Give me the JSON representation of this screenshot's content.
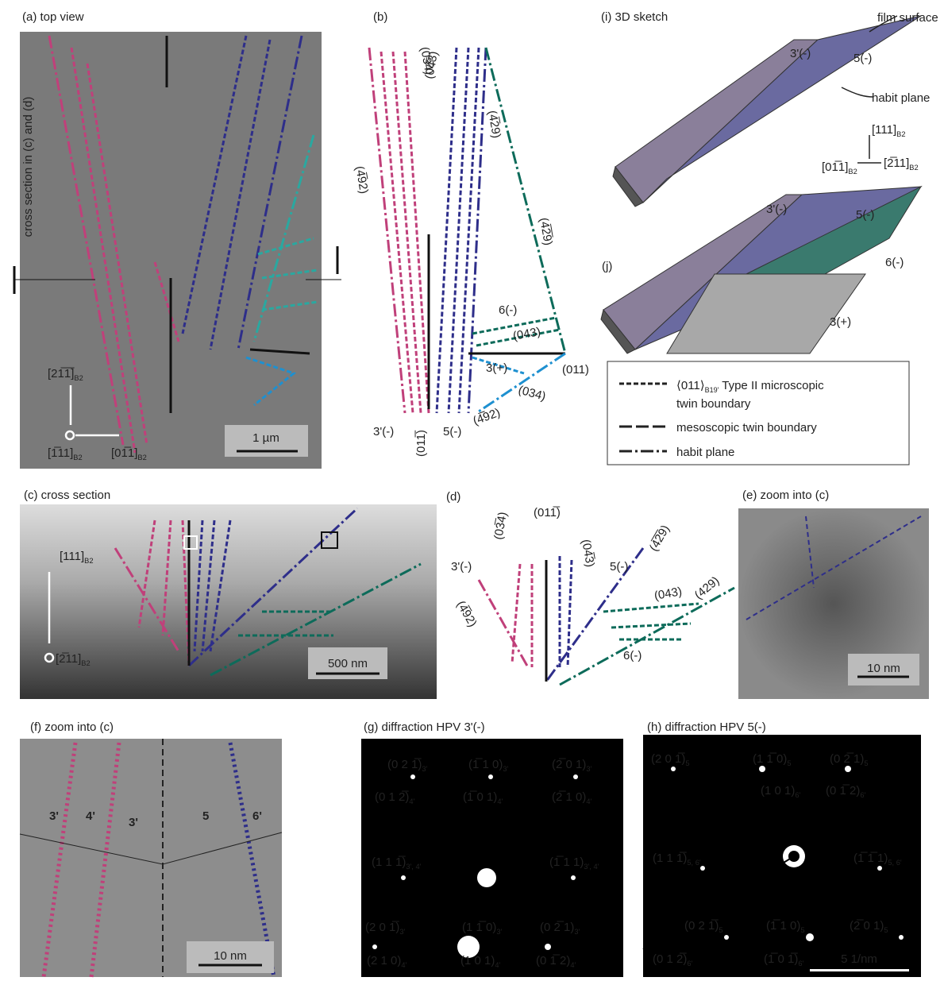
{
  "panel_a": {
    "title": "(a) top view",
    "section_label": "cross section in (c) and (d)",
    "dir_up": {
      "main": "[21̅1̅]",
      "sub": "B2"
    },
    "dir_out": {
      "main": "[1̅11]",
      "sub": "B2"
    },
    "dir_right": {
      "main": "[01̅1]",
      "sub": "B2"
    },
    "scale": "1 µm"
  },
  "panel_b": {
    "title": "(b)",
    "labels": [
      "(4̅92)",
      "(03̅4)",
      "(04̅3)",
      "(4̅29)",
      "(4̅2̅9)",
      "6(-)",
      "(043)",
      "3(+)",
      "(011)",
      "(034)",
      "(4̅92)",
      "3'(-)",
      "(011̅)",
      "5(-)"
    ]
  },
  "panel_i": {
    "title": "(i) 3D sketch",
    "film_surface": "film surface",
    "habit_plane": "habit plane",
    "top_label_1": "3'(-)",
    "top_label_2": "5(-)",
    "dir_up": {
      "main": "[111]",
      "sub": "B2"
    },
    "dir_left": {
      "main": "[01̅1]",
      "sub": "B2"
    },
    "dir_right": {
      "main": "[2̅11]",
      "sub": "B2"
    },
    "j_title": "(j)",
    "j_labels": [
      "3'(-)",
      "5(-)",
      "6(-)",
      "3(+)"
    ]
  },
  "legend": {
    "entry_1": {
      "main": "⟨011⟩",
      "sub": "B19'",
      "rest": " Type II microscopic",
      "line2": "twin boundary"
    },
    "entry_2": "mesoscopic twin boundary",
    "entry_3": "habit plane"
  },
  "panel_c": {
    "title": "(c) cross section",
    "dir_up": {
      "main": "[111]",
      "sub": "B2"
    },
    "dir_out": {
      "main": "[2̅11]",
      "sub": "B2"
    },
    "scale": "500 nm"
  },
  "panel_d": {
    "title": "(d)",
    "labels": [
      "(011̅)",
      "3'(-)",
      "(03̅4)",
      "(04̅3)",
      "5(-)",
      "(4̅2̅9)",
      "(4̅92)",
      "(043)",
      "(429)",
      "6(-)"
    ]
  },
  "panel_e": {
    "title": "(e) zoom into (c)",
    "scale": "10 nm"
  },
  "panel_f": {
    "title": "(f) zoom into (c)",
    "labels": [
      "3'",
      "4'",
      "3'",
      "5",
      "6'"
    ],
    "scale": "10 nm"
  },
  "panel_g": {
    "title": "(g) diffraction HPV 3'(-)",
    "spots": [
      {
        "main": "(0 2 1̅)",
        "sub": "3'"
      },
      {
        "main": "(1̅ 1 0)",
        "sub": "3'"
      },
      {
        "main": "(2̅ 0 1)",
        "sub": "3'"
      },
      {
        "main": "(0 1 2̅)",
        "sub": "4'"
      },
      {
        "main": "(1̅ 0 1)",
        "sub": "4'"
      },
      {
        "main": "(2̅ 1 0)",
        "sub": "4'"
      },
      {
        "main": "(1 1 1̅)",
        "sub": "3', 4'"
      },
      {
        "main": "(1̅ 1 1)",
        "sub": "3', 4'"
      },
      {
        "main": "(2 0 1̅)",
        "sub": "3'"
      },
      {
        "main": "(1 1̅ 0)",
        "sub": "3'"
      },
      {
        "main": "(0 2̅ 1)",
        "sub": "3'"
      },
      {
        "main": "(2 1 0)",
        "sub": "4'"
      },
      {
        "main": "(1 0 1)",
        "sub": "4'"
      },
      {
        "main": "(0 1̅ 2)",
        "sub": "4'"
      }
    ]
  },
  "panel_h": {
    "title": "(h) diffraction HPV 5(-)",
    "spots": [
      {
        "main": "(2 0 1̅)",
        "sub": "5"
      },
      {
        "main": "(1 1̅ 0)",
        "sub": "5"
      },
      {
        "main": "(0 2̅ 1)",
        "sub": "5"
      },
      {
        "main": "(1 0 1)",
        "sub": "6'"
      },
      {
        "main": "(0 1̅ 2)",
        "sub": "6'"
      },
      {
        "main": "(1 1 1̅)",
        "sub": "5, 6'"
      },
      {
        "main": "(1̅ 1̅ 1)",
        "sub": "5, 6'"
      },
      {
        "main": "(0 2 1̅)",
        "sub": "5"
      },
      {
        "main": "(1̅ 1 0)",
        "sub": "5"
      },
      {
        "main": "(2̅ 0 1)",
        "sub": "5"
      },
      {
        "main": "(0 1 2̅)",
        "sub": "6'"
      },
      {
        "main": "(1̅ 0 1̅)",
        "sub": "6'"
      }
    ],
    "scale": "5 1/nm"
  }
}
